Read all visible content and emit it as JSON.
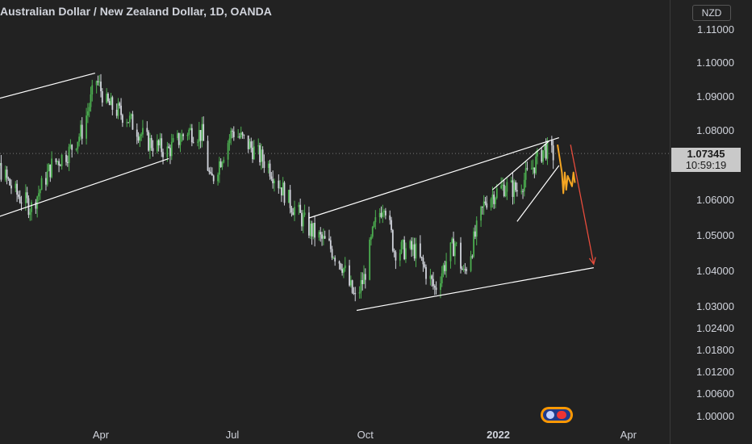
{
  "header": {
    "title": "Australian Dollar / New Zealand Dollar, 1D, OANDA"
  },
  "price_axis": {
    "currency": "NZD",
    "last_price": "1.07345",
    "countdown": "10:59:19"
  },
  "colors": {
    "background": "#222222",
    "candle_up": "#4caf50",
    "candle_down": "#d1d4dc",
    "trendline": "#ffffff",
    "projection_path": "#f5a623",
    "projection_arrow": "#e74c3c"
  },
  "chart_data": {
    "type": "candlestick",
    "symbol": "AUD/NZD",
    "timeframe": "1D",
    "source": "OANDA",
    "y_scale": "log",
    "ylim": [
      1.0,
      1.115
    ],
    "y_ticks": [
      "1.11000",
      "1.10000",
      "1.09000",
      "1.08000",
      "1.06000",
      "1.05000",
      "1.04000",
      "1.03000",
      "1.02400",
      "1.01800",
      "1.01200",
      "1.00600",
      "1.00000"
    ],
    "x_ticks": [
      "Apr",
      "Jul",
      "Oct",
      "2022",
      "Apr"
    ],
    "x_tick_dates": [
      "2021-04-01",
      "2021-07-01",
      "2021-10-01",
      "2022-01-01",
      "2022-04-01"
    ],
    "last_price": 1.07345,
    "close_path": [
      [
        "2021-01-04",
        1.078
      ],
      [
        "2021-01-18",
        1.071
      ],
      [
        "2021-02-01",
        1.062
      ],
      [
        "2021-02-12",
        1.058
      ],
      [
        "2021-02-26",
        1.07
      ],
      [
        "2021-03-10",
        1.074
      ],
      [
        "2021-03-19",
        1.08
      ],
      [
        "2021-03-29",
        1.095
      ],
      [
        "2021-04-05",
        1.088
      ],
      [
        "2021-04-19",
        1.084
      ],
      [
        "2021-05-03",
        1.077
      ],
      [
        "2021-05-17",
        1.074
      ],
      [
        "2021-05-31",
        1.08
      ],
      [
        "2021-06-10",
        1.079
      ],
      [
        "2021-06-16",
        1.065
      ],
      [
        "2021-06-25",
        1.074
      ],
      [
        "2021-07-01",
        1.08
      ],
      [
        "2021-07-12",
        1.076
      ],
      [
        "2021-07-26",
        1.07
      ],
      [
        "2021-08-09",
        1.06
      ],
      [
        "2021-08-23",
        1.052
      ],
      [
        "2021-09-06",
        1.047
      ],
      [
        "2021-09-15",
        1.042
      ],
      [
        "2021-09-20",
        1.036
      ],
      [
        "2021-09-24",
        1.032
      ],
      [
        "2021-09-30",
        1.038
      ],
      [
        "2021-10-07",
        1.052
      ],
      [
        "2021-10-14",
        1.06
      ],
      [
        "2021-10-21",
        1.046
      ],
      [
        "2021-11-04",
        1.046
      ],
      [
        "2021-11-12",
        1.04
      ],
      [
        "2021-11-18",
        1.035
      ],
      [
        "2021-11-26",
        1.043
      ],
      [
        "2021-12-02",
        1.048
      ],
      [
        "2021-12-08",
        1.039
      ],
      [
        "2021-12-14",
        1.047
      ],
      [
        "2021-12-23",
        1.06
      ],
      [
        "2022-01-05",
        1.064
      ],
      [
        "2022-01-14",
        1.063
      ],
      [
        "2022-01-24",
        1.069
      ],
      [
        "2022-02-02",
        1.075
      ],
      [
        "2022-02-08",
        1.073
      ]
    ],
    "trendlines": [
      {
        "from": [
          "2020-12-20",
          1.086
        ],
        "to": [
          "2021-03-28",
          1.097
        ]
      },
      {
        "from": [
          "2020-12-20",
          1.051
        ],
        "to": [
          "2021-05-18",
          1.072
        ]
      },
      {
        "from": [
          "2021-08-23",
          1.055
        ],
        "to": [
          "2022-02-12",
          1.078
        ]
      },
      {
        "from": [
          "2021-09-25",
          1.029
        ],
        "to": [
          "2022-03-08",
          1.041
        ]
      },
      {
        "from": [
          "2021-12-28",
          1.063
        ],
        "to": [
          "2022-02-05",
          1.077
        ]
      },
      {
        "from": [
          "2022-01-14",
          1.054
        ],
        "to": [
          "2022-02-12",
          1.07
        ]
      }
    ],
    "projection_path": [
      [
        "2022-02-11",
        1.076
      ],
      [
        "2022-02-14",
        1.068
      ],
      [
        "2022-02-15",
        1.062
      ],
      [
        "2022-02-16",
        1.068
      ],
      [
        "2022-02-17",
        1.063
      ],
      [
        "2022-02-18",
        1.067
      ],
      [
        "2022-02-21",
        1.064
      ],
      [
        "2022-02-22",
        1.068
      ],
      [
        "2022-02-23",
        1.065
      ]
    ],
    "projection_arrow": {
      "from": [
        "2022-02-20",
        1.076
      ],
      "to": [
        "2022-03-08",
        1.042
      ]
    }
  }
}
